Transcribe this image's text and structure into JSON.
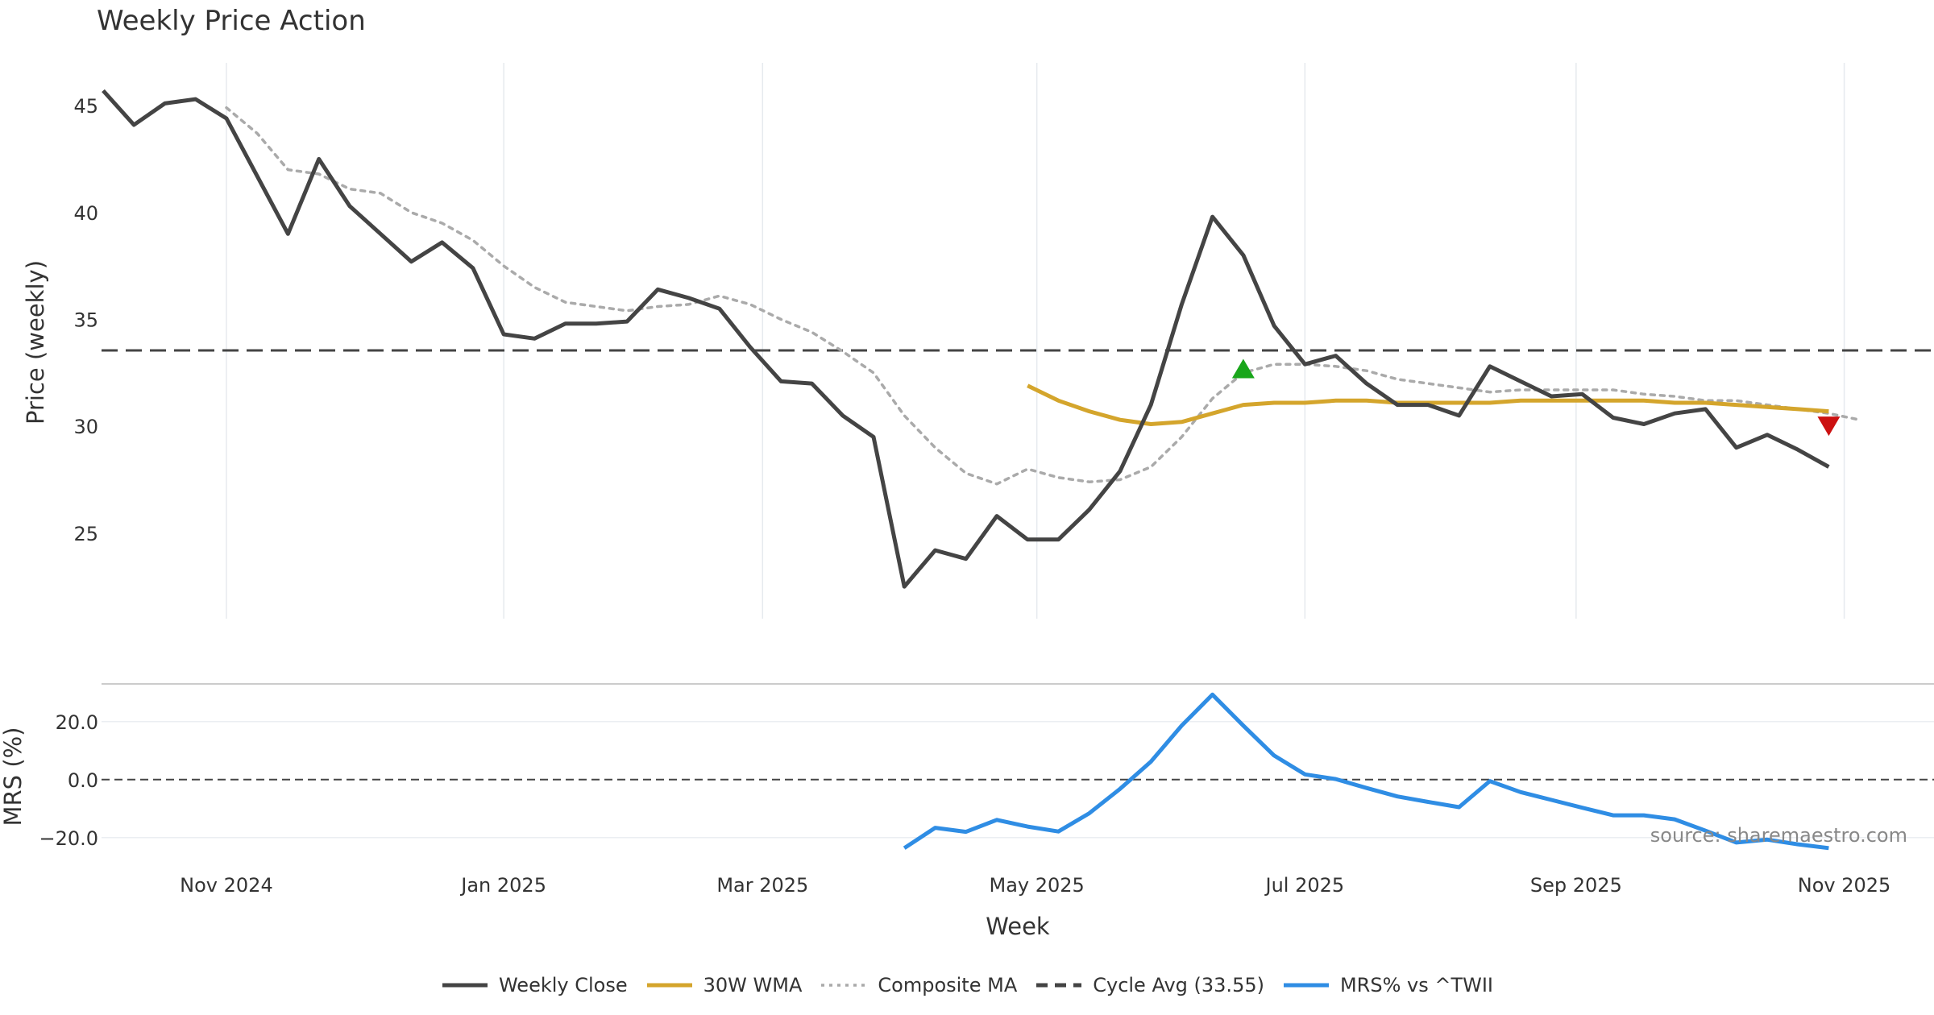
{
  "chart_data": {
    "type": "line",
    "title": "Weekly Price Action",
    "source": "source: sharemaestro.com",
    "xlabel": "Week",
    "x_ticks": [
      "Nov 2024",
      "Jan 2025",
      "Mar 2025",
      "May 2025",
      "Jul 2025",
      "Sep 2025",
      "Nov 2025"
    ],
    "x_tick_positions": [
      4,
      13,
      21.4,
      30.3,
      39.0,
      47.8,
      56.5
    ],
    "x_range": [
      0,
      60
    ],
    "price_panel": {
      "ylabel": "Price (weekly)",
      "ylim": [
        21,
        47
      ],
      "y_ticks": [
        25,
        30,
        35,
        40,
        45
      ],
      "series": [
        {
          "name": "Weekly Close",
          "color": "#444444",
          "style": "solid",
          "x_start": 0,
          "values": [
            45.7,
            44.1,
            45.1,
            45.3,
            44.4,
            41.7,
            39.0,
            42.5,
            40.3,
            39.0,
            37.7,
            38.6,
            37.4,
            34.3,
            34.1,
            34.8,
            34.8,
            34.9,
            36.4,
            36.0,
            35.5,
            33.7,
            32.1,
            32.0,
            30.5,
            29.5,
            22.5,
            24.2,
            23.8,
            25.8,
            24.7,
            24.7,
            26.1,
            27.9,
            31.0,
            35.7,
            39.8,
            38.0,
            34.7,
            32.9,
            33.3,
            32.0,
            31.0,
            31.0,
            30.5,
            32.8,
            32.1,
            31.4,
            31.5,
            30.4,
            30.1,
            30.6,
            30.8,
            29.0,
            29.6,
            28.9,
            28.1
          ]
        },
        {
          "name": "Composite MA",
          "color": "#aaaaaa",
          "style": "dotted",
          "x_start": 4,
          "values": [
            44.9,
            43.7,
            42.0,
            41.8,
            41.1,
            40.9,
            40.0,
            39.5,
            38.7,
            37.5,
            36.5,
            35.8,
            35.6,
            35.4,
            35.6,
            35.7,
            36.1,
            35.7,
            35.0,
            34.4,
            33.5,
            32.5,
            30.5,
            29.0,
            27.8,
            27.3,
            28.0,
            27.6,
            27.4,
            27.5,
            28.1,
            29.5,
            31.3,
            32.5,
            32.9,
            32.9,
            32.8,
            32.6,
            32.2,
            32.0,
            31.8,
            31.6,
            31.7,
            31.7,
            31.7,
            31.7,
            31.5,
            31.4,
            31.2,
            31.2,
            31.0,
            30.8,
            30.6,
            30.3
          ]
        },
        {
          "name": "30W WMA",
          "color": "#d4a52c",
          "style": "solid",
          "x_start": 30,
          "values": [
            31.9,
            31.2,
            30.7,
            30.3,
            30.1,
            30.2,
            30.6,
            31.0,
            31.1,
            31.1,
            31.2,
            31.2,
            31.1,
            31.1,
            31.1,
            31.1,
            31.2,
            31.2,
            31.2,
            31.2,
            31.2,
            31.1,
            31.1,
            31.0,
            30.9,
            30.8,
            30.7
          ]
        }
      ],
      "cycle_avg": {
        "name": "Cycle Avg (33.55)",
        "value": 33.55,
        "color": "#444444"
      },
      "markers": [
        {
          "type": "buy",
          "x": 37,
          "y": 32.7,
          "color": "#19a61b"
        },
        {
          "type": "sell",
          "x": 56,
          "y": 30.0,
          "color": "#cc1111"
        }
      ]
    },
    "mrs_panel": {
      "ylabel": "MRS (%)",
      "ylim": [
        -27,
        33
      ],
      "y_ticks": [
        20,
        0,
        -20
      ],
      "y_tick_labels": [
        "20.0",
        "0.0",
        "−20.0"
      ],
      "zero_line": 0,
      "series": [
        {
          "name": "MRS% vs ^TWII",
          "color": "#2f8de4",
          "style": "solid",
          "x_start": 26,
          "values": [
            -23.6,
            -16.6,
            -18.0,
            -13.9,
            -16.2,
            -17.9,
            -11.6,
            -3.2,
            6.2,
            18.6,
            29.3,
            18.6,
            8.3,
            1.8,
            0.2,
            -2.9,
            -5.8,
            -7.7,
            -9.5,
            -0.5,
            -4.3,
            -7.0,
            -9.7,
            -12.3,
            -12.3,
            -13.7,
            -17.6,
            -21.7,
            -20.7,
            -22.3,
            -23.6
          ]
        }
      ]
    },
    "legend": [
      {
        "label": "Weekly Close",
        "color": "#444444",
        "style": "solid"
      },
      {
        "label": "30W WMA",
        "color": "#d4a52c",
        "style": "solid"
      },
      {
        "label": "Composite MA",
        "color": "#aaaaaa",
        "style": "dotted"
      },
      {
        "label": "Cycle Avg (33.55)",
        "color": "#444444",
        "style": "dashed"
      },
      {
        "label": "MRS% vs ^TWII",
        "color": "#2f8de4",
        "style": "solid"
      }
    ]
  }
}
